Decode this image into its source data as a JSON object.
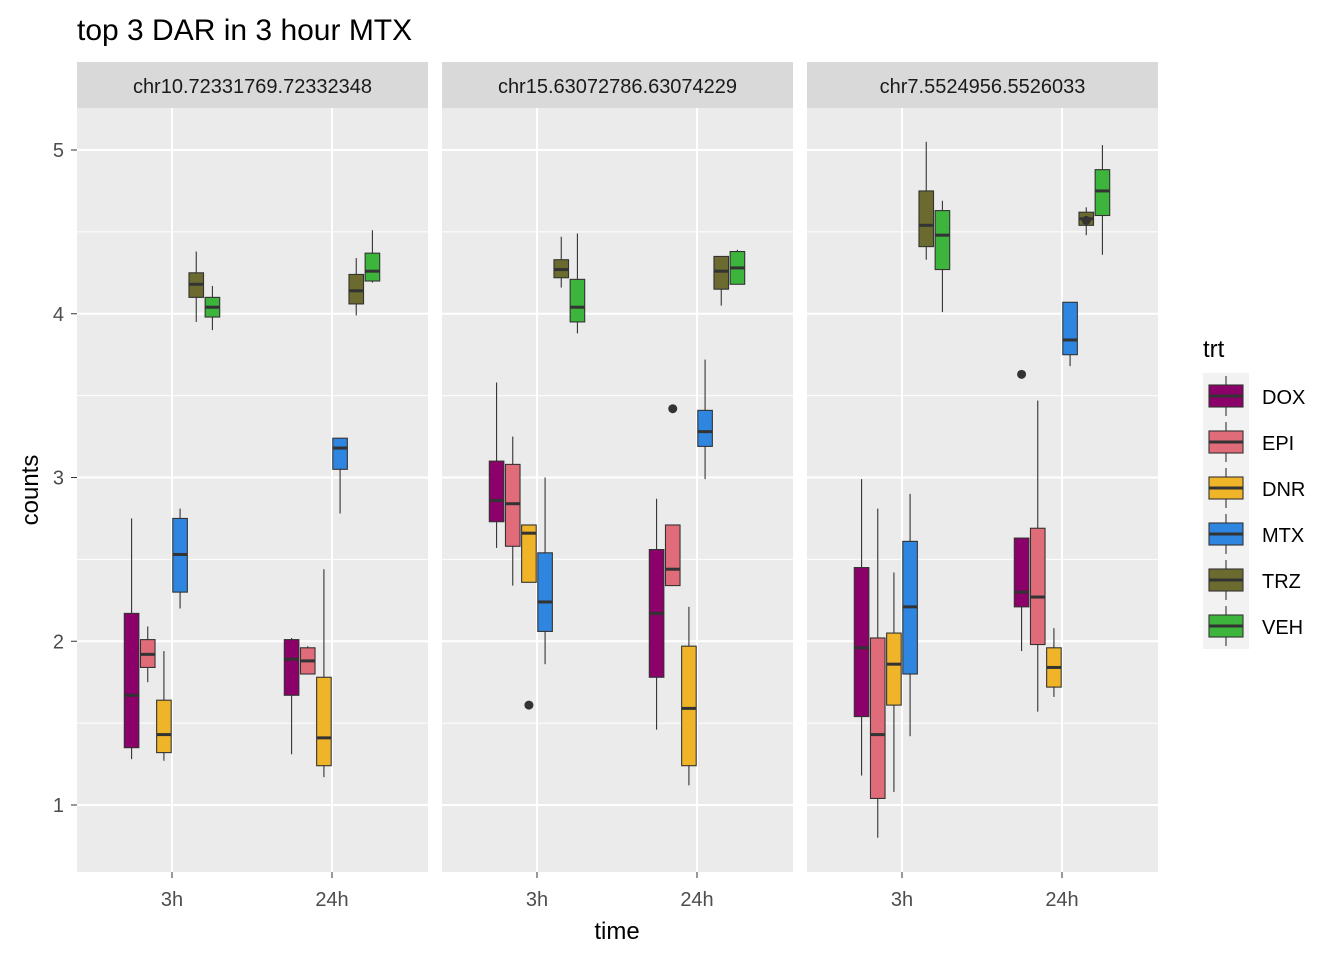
{
  "chart_data": {
    "type": "boxplot",
    "title": "top 3 DAR in 3 hour MTX",
    "xlabel": "time",
    "ylabel": "counts",
    "x_categories": [
      "3h",
      "24h"
    ],
    "y_ticks": [
      1,
      2,
      3,
      4,
      5
    ],
    "ylim": [
      0.6,
      5.3
    ],
    "grid": true,
    "legend": {
      "title": "trt",
      "position": "right",
      "items": [
        {
          "name": "DOX",
          "color": "#8B0069"
        },
        {
          "name": "EPI",
          "color": "#E06C7A"
        },
        {
          "name": "DNR",
          "color": "#F0B429"
        },
        {
          "name": "MTX",
          "color": "#2F86E0"
        },
        {
          "name": "TRZ",
          "color": "#6B6B2F"
        },
        {
          "name": "VEH",
          "color": "#3DB53D"
        }
      ]
    },
    "panels": [
      {
        "label": "chr10.72331769.72332348",
        "boxes": [
          {
            "time": "3h",
            "trt": "DOX",
            "min": 1.28,
            "q1": 1.35,
            "median": 1.67,
            "q3": 2.17,
            "max": 2.75,
            "outliers": []
          },
          {
            "time": "3h",
            "trt": "EPI",
            "min": 1.75,
            "q1": 1.84,
            "median": 1.92,
            "q3": 2.01,
            "max": 2.09,
            "outliers": []
          },
          {
            "time": "3h",
            "trt": "DNR",
            "min": 1.27,
            "q1": 1.32,
            "median": 1.43,
            "q3": 1.64,
            "max": 1.94,
            "outliers": []
          },
          {
            "time": "3h",
            "trt": "MTX",
            "min": 2.2,
            "q1": 2.3,
            "median": 2.53,
            "q3": 2.75,
            "max": 2.81,
            "outliers": []
          },
          {
            "time": "3h",
            "trt": "TRZ",
            "min": 3.95,
            "q1": 4.1,
            "median": 4.18,
            "q3": 4.25,
            "max": 4.38,
            "outliers": []
          },
          {
            "time": "3h",
            "trt": "VEH",
            "min": 3.9,
            "q1": 3.98,
            "median": 4.04,
            "q3": 4.1,
            "max": 4.17,
            "outliers": []
          },
          {
            "time": "24h",
            "trt": "DOX",
            "min": 1.31,
            "q1": 1.67,
            "median": 1.89,
            "q3": 2.01,
            "max": 2.02,
            "outliers": []
          },
          {
            "time": "24h",
            "trt": "EPI",
            "min": 1.8,
            "q1": 1.8,
            "median": 1.88,
            "q3": 1.96,
            "max": 1.97,
            "outliers": []
          },
          {
            "time": "24h",
            "trt": "DNR",
            "min": 1.17,
            "q1": 1.24,
            "median": 1.41,
            "q3": 1.78,
            "max": 2.44,
            "outliers": []
          },
          {
            "time": "24h",
            "trt": "MTX",
            "min": 2.78,
            "q1": 3.05,
            "median": 3.18,
            "q3": 3.24,
            "max": 3.24,
            "outliers": []
          },
          {
            "time": "24h",
            "trt": "TRZ",
            "min": 3.99,
            "q1": 4.06,
            "median": 4.14,
            "q3": 4.24,
            "max": 4.34,
            "outliers": []
          },
          {
            "time": "24h",
            "trt": "VEH",
            "min": 4.19,
            "q1": 4.2,
            "median": 4.26,
            "q3": 4.37,
            "max": 4.51,
            "outliers": []
          }
        ]
      },
      {
        "label": "chr15.63072786.63074229",
        "boxes": [
          {
            "time": "3h",
            "trt": "DOX",
            "min": 2.57,
            "q1": 2.73,
            "median": 2.86,
            "q3": 3.1,
            "max": 3.58,
            "outliers": []
          },
          {
            "time": "3h",
            "trt": "EPI",
            "min": 2.34,
            "q1": 2.58,
            "median": 2.84,
            "q3": 3.08,
            "max": 3.25,
            "outliers": []
          },
          {
            "time": "3h",
            "trt": "DNR",
            "min": 2.36,
            "q1": 2.36,
            "median": 2.66,
            "q3": 2.71,
            "max": 2.71,
            "outliers": [
              1.61
            ]
          },
          {
            "time": "3h",
            "trt": "MTX",
            "min": 1.86,
            "q1": 2.06,
            "median": 2.24,
            "q3": 2.54,
            "max": 3.0,
            "outliers": []
          },
          {
            "time": "3h",
            "trt": "TRZ",
            "min": 4.16,
            "q1": 4.22,
            "median": 4.27,
            "q3": 4.33,
            "max": 4.47,
            "outliers": []
          },
          {
            "time": "3h",
            "trt": "VEH",
            "min": 3.88,
            "q1": 3.95,
            "median": 4.04,
            "q3": 4.21,
            "max": 4.49,
            "outliers": []
          },
          {
            "time": "24h",
            "trt": "DOX",
            "min": 1.46,
            "q1": 1.78,
            "median": 2.17,
            "q3": 2.56,
            "max": 2.87,
            "outliers": []
          },
          {
            "time": "24h",
            "trt": "EPI",
            "min": 2.34,
            "q1": 2.34,
            "median": 2.44,
            "q3": 2.71,
            "max": 2.71,
            "outliers": [
              3.42
            ]
          },
          {
            "time": "24h",
            "trt": "DNR",
            "min": 1.12,
            "q1": 1.24,
            "median": 1.59,
            "q3": 1.97,
            "max": 2.21,
            "outliers": []
          },
          {
            "time": "24h",
            "trt": "MTX",
            "min": 2.99,
            "q1": 3.19,
            "median": 3.28,
            "q3": 3.41,
            "max": 3.72,
            "outliers": []
          },
          {
            "time": "24h",
            "trt": "TRZ",
            "min": 4.05,
            "q1": 4.15,
            "median": 4.26,
            "q3": 4.35,
            "max": 4.35,
            "outliers": []
          },
          {
            "time": "24h",
            "trt": "VEH",
            "min": 4.18,
            "q1": 4.18,
            "median": 4.28,
            "q3": 4.38,
            "max": 4.39,
            "outliers": []
          }
        ]
      },
      {
        "label": "chr7.5524956.5526033",
        "boxes": [
          {
            "time": "3h",
            "trt": "DOX",
            "min": 1.18,
            "q1": 1.54,
            "median": 1.96,
            "q3": 2.45,
            "max": 2.99,
            "outliers": []
          },
          {
            "time": "3h",
            "trt": "EPI",
            "min": 0.8,
            "q1": 1.04,
            "median": 1.43,
            "q3": 2.02,
            "max": 2.81,
            "outliers": []
          },
          {
            "time": "3h",
            "trt": "DNR",
            "min": 1.08,
            "q1": 1.61,
            "median": 1.86,
            "q3": 2.05,
            "max": 2.42,
            "outliers": []
          },
          {
            "time": "3h",
            "trt": "MTX",
            "min": 1.42,
            "q1": 1.8,
            "median": 2.21,
            "q3": 2.61,
            "max": 2.9,
            "outliers": []
          },
          {
            "time": "3h",
            "trt": "TRZ",
            "min": 4.33,
            "q1": 4.41,
            "median": 4.54,
            "q3": 4.75,
            "max": 5.05,
            "outliers": []
          },
          {
            "time": "3h",
            "trt": "VEH",
            "min": 4.01,
            "q1": 4.27,
            "median": 4.48,
            "q3": 4.63,
            "max": 4.69,
            "outliers": []
          },
          {
            "time": "24h",
            "trt": "DOX",
            "min": 1.94,
            "q1": 2.21,
            "median": 2.3,
            "q3": 2.63,
            "max": 2.63,
            "outliers": [
              3.63
            ]
          },
          {
            "time": "24h",
            "trt": "EPI",
            "min": 1.57,
            "q1": 1.98,
            "median": 2.27,
            "q3": 2.69,
            "max": 3.47,
            "outliers": []
          },
          {
            "time": "24h",
            "trt": "DNR",
            "min": 1.66,
            "q1": 1.72,
            "median": 1.84,
            "q3": 1.96,
            "max": 2.08,
            "outliers": []
          },
          {
            "time": "24h",
            "trt": "MTX",
            "min": 3.68,
            "q1": 3.75,
            "median": 3.84,
            "q3": 4.07,
            "max": 4.07,
            "outliers": []
          },
          {
            "time": "24h",
            "trt": "TRZ",
            "min": 4.48,
            "q1": 4.54,
            "median": 4.58,
            "q3": 4.62,
            "max": 4.65,
            "outliers": [
              4.57
            ]
          },
          {
            "time": "24h",
            "trt": "VEH",
            "min": 4.36,
            "q1": 4.6,
            "median": 4.75,
            "q3": 4.88,
            "max": 5.03,
            "outliers": []
          }
        ]
      }
    ]
  }
}
